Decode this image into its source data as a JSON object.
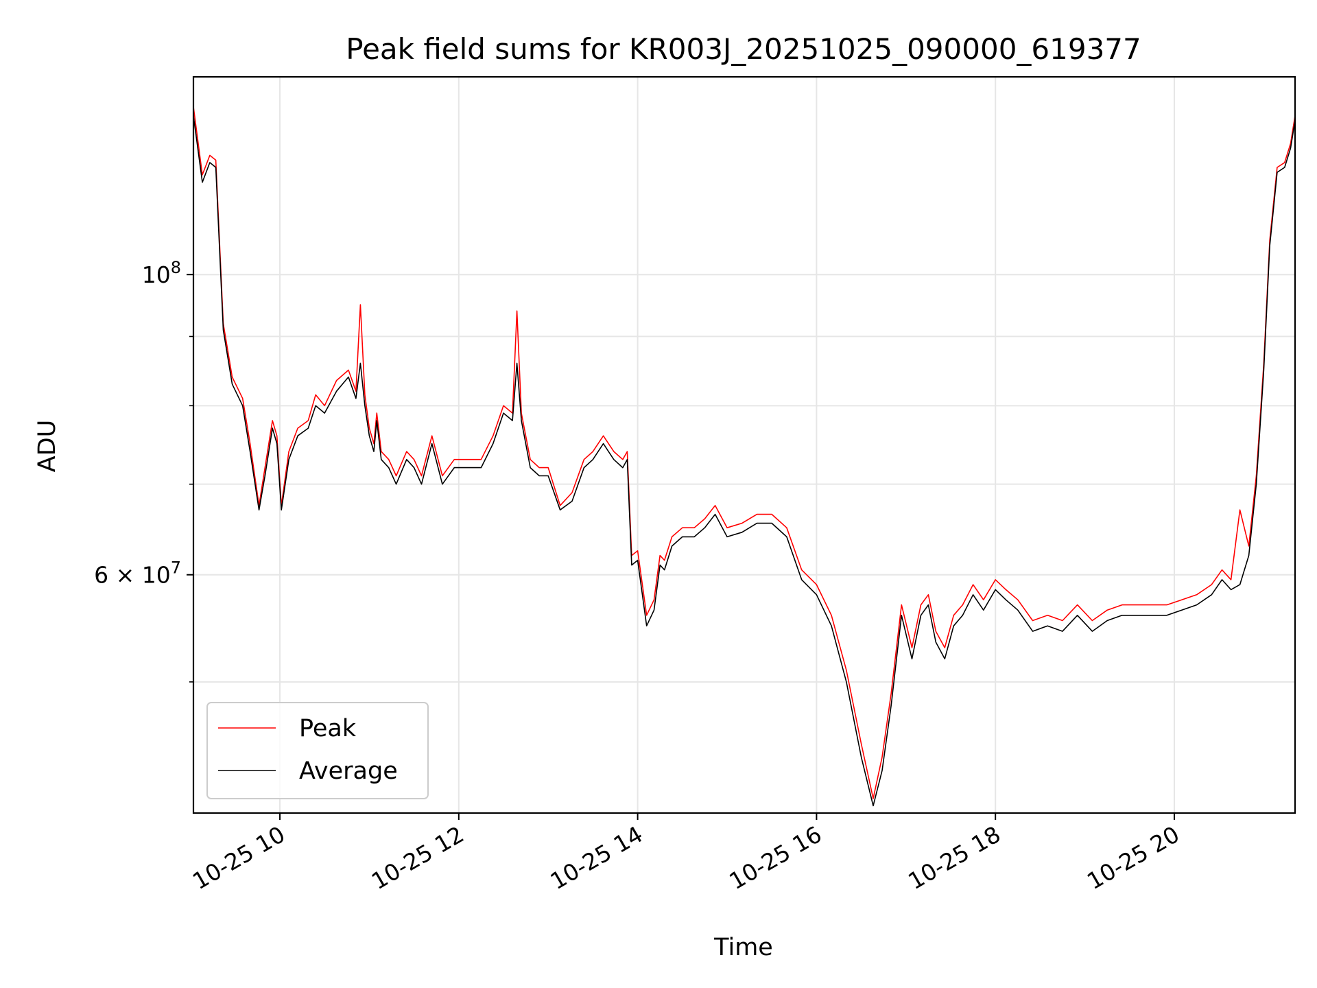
{
  "chart_data": {
    "type": "line",
    "title": "Peak field sums for KR003J_20251025_090000_619377",
    "xlabel": "Time",
    "ylabel": "ADU",
    "yscale": "log",
    "xlim": [
      "2025-10-25 09:02",
      "2025-10-25 21:21"
    ],
    "ylim": [
      40000000,
      140000000
    ],
    "x_ticks": [
      "10-25 10",
      "10-25 12",
      "10-25 14",
      "10-25 16",
      "10-25 18",
      "10-25 20"
    ],
    "y_tick_labels": [
      "10^8",
      "6 × 10^7"
    ],
    "y_tick_values": [
      100000000,
      60000000
    ],
    "y_minor_ticks": [
      50000000,
      70000000,
      80000000,
      90000000
    ],
    "grid": true,
    "legend": {
      "position": "lower left",
      "entries": [
        "Peak",
        "Average"
      ]
    },
    "colors": {
      "Peak": "#ff0000",
      "Average": "#000000"
    },
    "series": [
      {
        "name": "Average",
        "x": [
          "2025-10-25 09:02",
          "2025-10-25 09:08",
          "2025-10-25 09:13",
          "2025-10-25 09:17",
          "2025-10-25 09:22",
          "2025-10-25 09:28",
          "2025-10-25 09:35",
          "2025-10-25 09:40",
          "2025-10-25 09:46",
          "2025-10-25 09:50",
          "2025-10-25 09:55",
          "2025-10-25 09:58",
          "2025-10-25 10:01",
          "2025-10-25 10:06",
          "2025-10-25 10:12",
          "2025-10-25 10:19",
          "2025-10-25 10:24",
          "2025-10-25 10:30",
          "2025-10-25 10:38",
          "2025-10-25 10:46",
          "2025-10-25 10:51",
          "2025-10-25 10:54",
          "2025-10-25 10:57",
          "2025-10-25 11:00",
          "2025-10-25 11:03",
          "2025-10-25 11:05",
          "2025-10-25 11:08",
          "2025-10-25 11:13",
          "2025-10-25 11:18",
          "2025-10-25 11:25",
          "2025-10-25 11:30",
          "2025-10-25 11:35",
          "2025-10-25 11:42",
          "2025-10-25 11:49",
          "2025-10-25 11:57",
          "2025-10-25 12:05",
          "2025-10-25 12:15",
          "2025-10-25 12:23",
          "2025-10-25 12:30",
          "2025-10-25 12:36",
          "2025-10-25 12:39",
          "2025-10-25 12:42",
          "2025-10-25 12:48",
          "2025-10-25 12:54",
          "2025-10-25 13:00",
          "2025-10-25 13:08",
          "2025-10-25 13:16",
          "2025-10-25 13:24",
          "2025-10-25 13:30",
          "2025-10-25 13:37",
          "2025-10-25 13:44",
          "2025-10-25 13:50",
          "2025-10-25 13:53",
          "2025-10-25 13:56",
          "2025-10-25 14:00",
          "2025-10-25 14:06",
          "2025-10-25 14:11",
          "2025-10-25 14:15",
          "2025-10-25 14:18",
          "2025-10-25 14:23",
          "2025-10-25 14:30",
          "2025-10-25 14:38",
          "2025-10-25 14:45",
          "2025-10-25 14:52",
          "2025-10-25 15:00",
          "2025-10-25 15:10",
          "2025-10-25 15:20",
          "2025-10-25 15:30",
          "2025-10-25 15:40",
          "2025-10-25 15:50",
          "2025-10-25 16:00",
          "2025-10-25 16:10",
          "2025-10-25 16:20",
          "2025-10-25 16:30",
          "2025-10-25 16:38",
          "2025-10-25 16:44",
          "2025-10-25 16:50",
          "2025-10-25 16:57",
          "2025-10-25 17:04",
          "2025-10-25 17:10",
          "2025-10-25 17:15",
          "2025-10-25 17:20",
          "2025-10-25 17:26",
          "2025-10-25 17:32",
          "2025-10-25 17:38",
          "2025-10-25 17:45",
          "2025-10-25 17:52",
          "2025-10-25 18:00",
          "2025-10-25 18:07",
          "2025-10-25 18:15",
          "2025-10-25 18:25",
          "2025-10-25 18:35",
          "2025-10-25 18:45",
          "2025-10-25 18:55",
          "2025-10-25 19:05",
          "2025-10-25 19:15",
          "2025-10-25 19:25",
          "2025-10-25 19:35",
          "2025-10-25 19:45",
          "2025-10-25 19:55",
          "2025-10-25 20:05",
          "2025-10-25 20:15",
          "2025-10-25 20:25",
          "2025-10-25 20:32",
          "2025-10-25 20:38",
          "2025-10-25 20:44",
          "2025-10-25 20:50",
          "2025-10-25 20:55",
          "2025-10-25 21:00",
          "2025-10-25 21:04",
          "2025-10-25 21:09",
          "2025-10-25 21:14",
          "2025-10-25 21:18",
          "2025-10-25 21:21"
        ],
        "values": [
          131000000,
          117000000,
          121000000,
          120000000,
          91000000,
          83000000,
          80000000,
          74000000,
          67000000,
          71000000,
          77000000,
          75000000,
          67000000,
          73000000,
          76000000,
          77000000,
          80000000,
          79000000,
          82000000,
          84000000,
          81000000,
          86000000,
          80000000,
          76000000,
          74000000,
          78000000,
          73000000,
          72000000,
          70000000,
          73000000,
          72000000,
          70000000,
          75000000,
          70000000,
          72000000,
          72000000,
          72000000,
          75000000,
          79000000,
          78000000,
          86000000,
          78000000,
          72000000,
          71000000,
          71000000,
          67000000,
          68000000,
          72000000,
          73000000,
          75000000,
          73000000,
          72000000,
          73000000,
          61000000,
          61500000,
          55000000,
          56500000,
          61000000,
          60500000,
          63000000,
          64000000,
          64000000,
          65000000,
          66500000,
          64000000,
          64500000,
          65500000,
          65500000,
          64000000,
          59500000,
          58000000,
          55000000,
          50000000,
          44000000,
          40500000,
          43000000,
          48000000,
          56000000,
          52000000,
          56000000,
          57000000,
          53500000,
          52000000,
          55000000,
          56000000,
          58000000,
          56500000,
          58500000,
          57500000,
          56500000,
          54500000,
          55000000,
          54500000,
          56000000,
          54500000,
          55500000,
          56000000,
          56000000,
          56000000,
          56000000,
          56500000,
          57000000,
          58000000,
          59500000,
          58500000,
          59000000,
          62000000,
          70000000,
          85000000,
          105000000,
          119000000,
          120000000,
          124000000,
          130000000
        ]
      },
      {
        "name": "Peak",
        "x": [
          "2025-10-25 09:02",
          "2025-10-25 09:08",
          "2025-10-25 09:13",
          "2025-10-25 09:17",
          "2025-10-25 09:22",
          "2025-10-25 09:28",
          "2025-10-25 09:35",
          "2025-10-25 09:40",
          "2025-10-25 09:46",
          "2025-10-25 09:50",
          "2025-10-25 09:55",
          "2025-10-25 09:58",
          "2025-10-25 10:01",
          "2025-10-25 10:06",
          "2025-10-25 10:12",
          "2025-10-25 10:19",
          "2025-10-25 10:24",
          "2025-10-25 10:30",
          "2025-10-25 10:38",
          "2025-10-25 10:46",
          "2025-10-25 10:51",
          "2025-10-25 10:54",
          "2025-10-25 10:57",
          "2025-10-25 11:00",
          "2025-10-25 11:03",
          "2025-10-25 11:05",
          "2025-10-25 11:08",
          "2025-10-25 11:13",
          "2025-10-25 11:18",
          "2025-10-25 11:25",
          "2025-10-25 11:30",
          "2025-10-25 11:35",
          "2025-10-25 11:42",
          "2025-10-25 11:49",
          "2025-10-25 11:57",
          "2025-10-25 12:05",
          "2025-10-25 12:15",
          "2025-10-25 12:23",
          "2025-10-25 12:30",
          "2025-10-25 12:36",
          "2025-10-25 12:39",
          "2025-10-25 12:42",
          "2025-10-25 12:48",
          "2025-10-25 12:54",
          "2025-10-25 13:00",
          "2025-10-25 13:08",
          "2025-10-25 13:16",
          "2025-10-25 13:24",
          "2025-10-25 13:30",
          "2025-10-25 13:37",
          "2025-10-25 13:44",
          "2025-10-25 13:50",
          "2025-10-25 13:53",
          "2025-10-25 13:56",
          "2025-10-25 14:00",
          "2025-10-25 14:06",
          "2025-10-25 14:11",
          "2025-10-25 14:15",
          "2025-10-25 14:18",
          "2025-10-25 14:23",
          "2025-10-25 14:30",
          "2025-10-25 14:38",
          "2025-10-25 14:45",
          "2025-10-25 14:52",
          "2025-10-25 15:00",
          "2025-10-25 15:10",
          "2025-10-25 15:20",
          "2025-10-25 15:30",
          "2025-10-25 15:40",
          "2025-10-25 15:50",
          "2025-10-25 16:00",
          "2025-10-25 16:10",
          "2025-10-25 16:20",
          "2025-10-25 16:30",
          "2025-10-25 16:38",
          "2025-10-25 16:44",
          "2025-10-25 16:50",
          "2025-10-25 16:57",
          "2025-10-25 17:04",
          "2025-10-25 17:10",
          "2025-10-25 17:15",
          "2025-10-25 17:20",
          "2025-10-25 17:26",
          "2025-10-25 17:32",
          "2025-10-25 17:38",
          "2025-10-25 17:45",
          "2025-10-25 17:52",
          "2025-10-25 18:00",
          "2025-10-25 18:07",
          "2025-10-25 18:15",
          "2025-10-25 18:25",
          "2025-10-25 18:35",
          "2025-10-25 18:45",
          "2025-10-25 18:55",
          "2025-10-25 19:05",
          "2025-10-25 19:15",
          "2025-10-25 19:25",
          "2025-10-25 19:35",
          "2025-10-25 19:45",
          "2025-10-25 19:55",
          "2025-10-25 20:05",
          "2025-10-25 20:15",
          "2025-10-25 20:25",
          "2025-10-25 20:32",
          "2025-10-25 20:38",
          "2025-10-25 20:44",
          "2025-10-25 20:50",
          "2025-10-25 20:55",
          "2025-10-25 21:00",
          "2025-10-25 21:04",
          "2025-10-25 21:09",
          "2025-10-25 21:14",
          "2025-10-25 21:18",
          "2025-10-25 21:21"
        ],
        "values": [
          133000000,
          118500000,
          122500000,
          121500000,
          92000000,
          84000000,
          81000000,
          75000000,
          67500000,
          72000000,
          78000000,
          76000000,
          67500000,
          74000000,
          77000000,
          78000000,
          81500000,
          80000000,
          83500000,
          85000000,
          82000000,
          95000000,
          81500000,
          77000000,
          75000000,
          79000000,
          74000000,
          73000000,
          71000000,
          74000000,
          73000000,
          71000000,
          76000000,
          71000000,
          73000000,
          73000000,
          73000000,
          76000000,
          80000000,
          79000000,
          94000000,
          79000000,
          73000000,
          72000000,
          72000000,
          67500000,
          69000000,
          73000000,
          74000000,
          76000000,
          74000000,
          73000000,
          74000000,
          62000000,
          62500000,
          56000000,
          57500000,
          62000000,
          61500000,
          64000000,
          65000000,
          65000000,
          66000000,
          67500000,
          65000000,
          65500000,
          66500000,
          66500000,
          65000000,
          60500000,
          59000000,
          56000000,
          51000000,
          45000000,
          41000000,
          44000000,
          49000000,
          57000000,
          53000000,
          57000000,
          58000000,
          54500000,
          53000000,
          56000000,
          57000000,
          59000000,
          57500000,
          59500000,
          58500000,
          57500000,
          55500000,
          56000000,
          55500000,
          57000000,
          55500000,
          56500000,
          57000000,
          57000000,
          57000000,
          57000000,
          57500000,
          58000000,
          59000000,
          60500000,
          59500000,
          67000000,
          63000000,
          71000000,
          86000000,
          106000000,
          120000000,
          121000000,
          125000000,
          131000000
        ]
      }
    ]
  }
}
